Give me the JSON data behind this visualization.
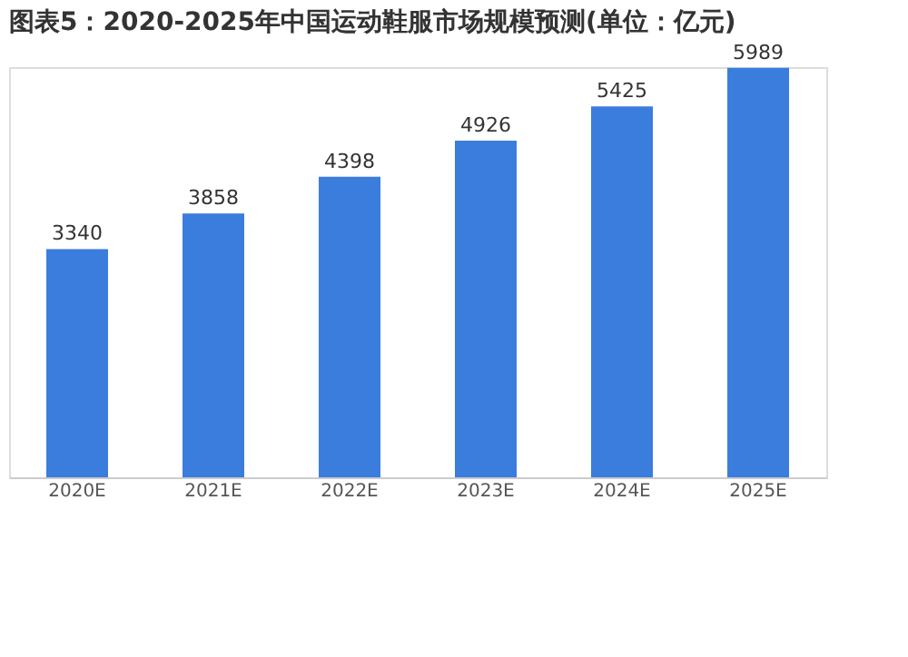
{
  "chart_data": {
    "type": "bar",
    "title": "图表5：2020-2025年中国运动鞋服市场规模预测(单位：亿元)",
    "categories": [
      "2020E",
      "2021E",
      "2022E",
      "2023E",
      "2024E",
      "2025E"
    ],
    "values": [
      3340,
      3858,
      4398,
      4926,
      5425,
      5989
    ],
    "color": "#3b7ddd",
    "data_labels": true
  }
}
